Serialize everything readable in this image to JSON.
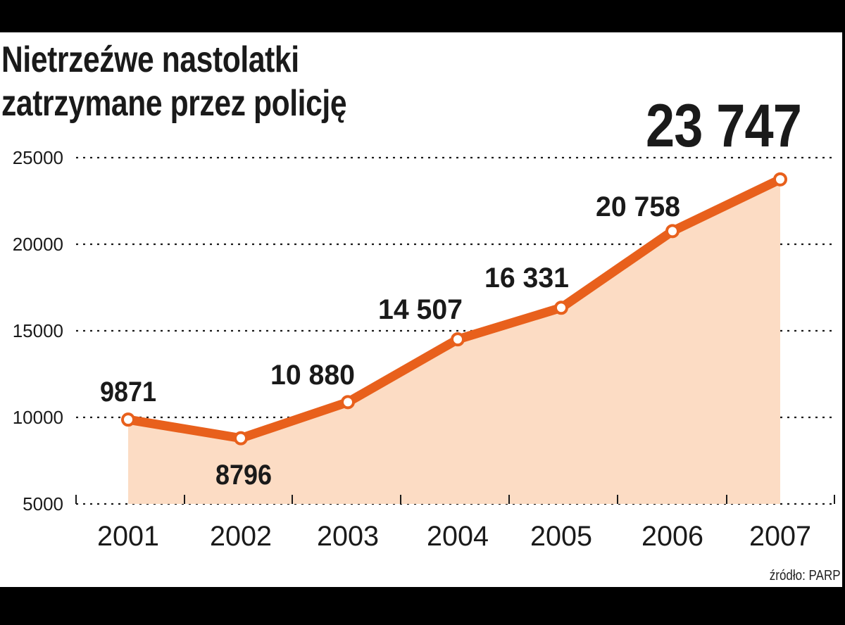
{
  "title_line1": "Nietrzeźwe nastolatki",
  "title_line2": "zatrzymane przez policję",
  "headline_value": "23 747",
  "source": "źródło: PARP",
  "colors": {
    "line": "#e8601c",
    "fill": "#fcdcc4",
    "marker_fill": "#ffffff",
    "text": "#1a1a1a",
    "grid": "#1a1a1a"
  },
  "chart_data": {
    "type": "area",
    "title": "Nietrzeźwe nastolatki zatrzymane przez policję",
    "categories": [
      "2001",
      "2002",
      "2003",
      "2004",
      "2005",
      "2006",
      "2007"
    ],
    "values": [
      9871,
      8796,
      10880,
      14507,
      16331,
      20758,
      23747
    ],
    "data_labels": [
      "9871",
      "8796",
      "10 880",
      "14 507",
      "16 331",
      "20 758",
      "23 747"
    ],
    "xlabel": "",
    "ylabel": "",
    "ylim": [
      5000,
      25000
    ],
    "yticks": [
      5000,
      10000,
      15000,
      20000,
      25000
    ],
    "ytick_labels": [
      "5000",
      "10000",
      "15000",
      "20000",
      "25000"
    ],
    "grid": "horizontal dotted",
    "legend": "none",
    "annotation": "23 747",
    "source": "źródło: PARP"
  }
}
